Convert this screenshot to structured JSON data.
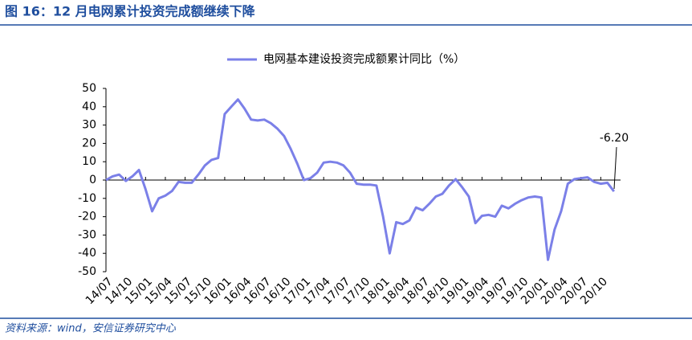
{
  "header": {
    "title": "图 16：12 月电网累计投资完成额继续下降"
  },
  "chart_data": {
    "type": "line",
    "categories": [
      "14/07",
      null,
      null,
      "14/10",
      null,
      null,
      "15/01",
      null,
      null,
      "15/04",
      null,
      null,
      "15/07",
      null,
      null,
      "15/10",
      null,
      null,
      "16/01",
      null,
      null,
      "16/04",
      null,
      null,
      "16/07",
      null,
      null,
      "16/10",
      null,
      null,
      "17/01",
      null,
      null,
      "17/04",
      null,
      null,
      "17/07",
      null,
      null,
      "17/10",
      null,
      null,
      "18/01",
      null,
      null,
      "18/04",
      null,
      null,
      "18/07",
      null,
      null,
      "18/10",
      null,
      null,
      "19/01",
      null,
      null,
      "19/04",
      null,
      null,
      "19/07",
      null,
      null,
      "19/10",
      null,
      null,
      "20/01",
      null,
      null,
      "20/04",
      null,
      null,
      "20/07",
      null,
      null,
      "20/10",
      null,
      null
    ],
    "series": [
      {
        "name": "电网基本建设投资完成额累计同比（%）",
        "color": "#7b80e8",
        "values": [
          0,
          2,
          3,
          -0.5,
          2,
          5.5,
          -5,
          -17,
          -10,
          -8.5,
          -6,
          -1,
          -1.5,
          -1.5,
          3,
          8,
          11,
          12,
          36,
          40,
          44,
          39,
          33,
          32.5,
          33,
          31,
          28,
          24,
          17,
          9,
          0,
          1,
          4,
          9.5,
          10,
          9.5,
          8,
          4,
          -2,
          -2.5,
          -2.5,
          -3,
          -20,
          -40,
          -23,
          -24,
          -22,
          -15,
          -16.5,
          -13,
          -9,
          -7.5,
          -3,
          0.5,
          -4,
          -9,
          -23.5,
          -19.5,
          -19,
          -20,
          -14,
          -15.5,
          -13,
          -11,
          -9.5,
          -9,
          -9.5,
          -43.5,
          -27,
          -17,
          -2,
          0.5,
          1,
          1.5,
          -1,
          -2,
          -1.5,
          -6.2
        ]
      }
    ],
    "ylim": [
      -50,
      50
    ],
    "yticks": [
      -50,
      -40,
      -30,
      -20,
      -10,
      0,
      10,
      20,
      30,
      40,
      50
    ],
    "annotation": "-6.20"
  },
  "footer": {
    "source": "资料来源：wind，安信证券研究中心"
  }
}
